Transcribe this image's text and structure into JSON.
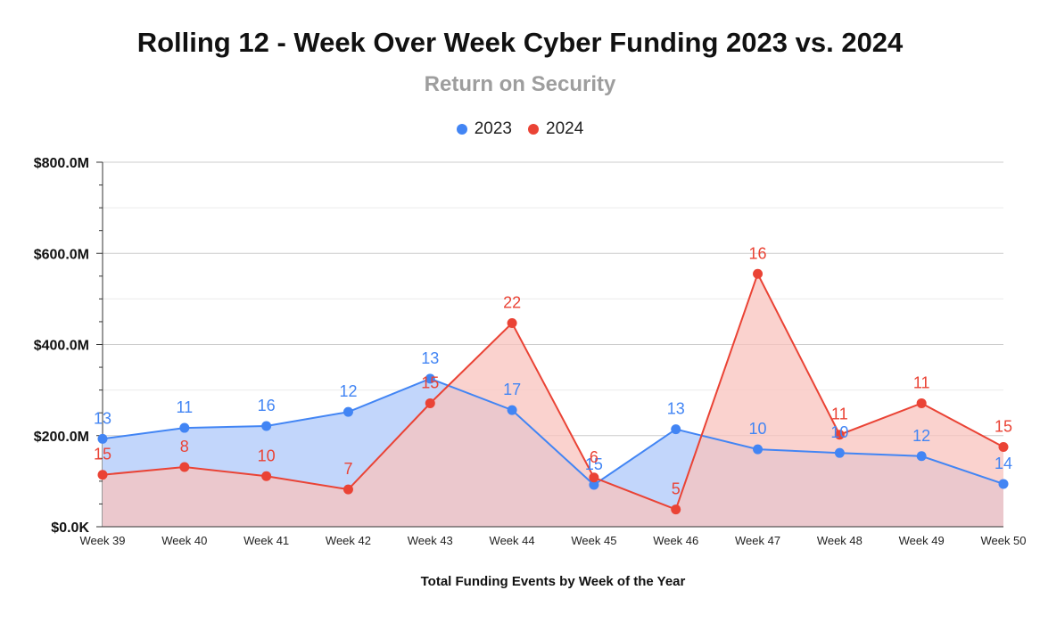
{
  "chart_data": {
    "type": "area",
    "title": "Rolling 12 - Week Over Week Cyber Funding 2023 vs. 2024",
    "subtitle": "Return on Security",
    "xlabel": "Total Funding Events by Week of the Year",
    "ylabel": "",
    "ylim": [
      0,
      800
    ],
    "y_unit": "$M",
    "y_ticks": [
      "$0.0K",
      "$200.0M",
      "$400.0M",
      "$600.0M",
      "$800.0M"
    ],
    "grid": true,
    "legend_position": "top",
    "categories": [
      "Week 39",
      "Week 40",
      "Week 41",
      "Week 42",
      "Week 43",
      "Week 44",
      "Week 45",
      "Week 46",
      "Week 47",
      "Week 48",
      "Week 49",
      "Week 50"
    ],
    "series": [
      {
        "name": "2023",
        "color": "#4285f4",
        "fill": "#c2d6fb",
        "values": [
          193,
          217,
          221,
          252,
          325,
          256,
          92,
          214,
          170,
          162,
          155,
          94
        ],
        "data_labels": [
          "13",
          "11",
          "16",
          "12",
          "13",
          "17",
          "15",
          "13",
          "10",
          "10",
          "12",
          "14"
        ]
      },
      {
        "name": "2024",
        "color": "#ea4335",
        "fill": "#f8c3bd",
        "values": [
          114,
          131,
          111,
          82,
          271,
          447,
          108,
          38,
          555,
          202,
          271,
          175
        ],
        "data_labels": [
          "15",
          "8",
          "10",
          "7",
          "15",
          "22",
          "6",
          "5",
          "16",
          "11",
          "11",
          "15"
        ]
      }
    ]
  }
}
